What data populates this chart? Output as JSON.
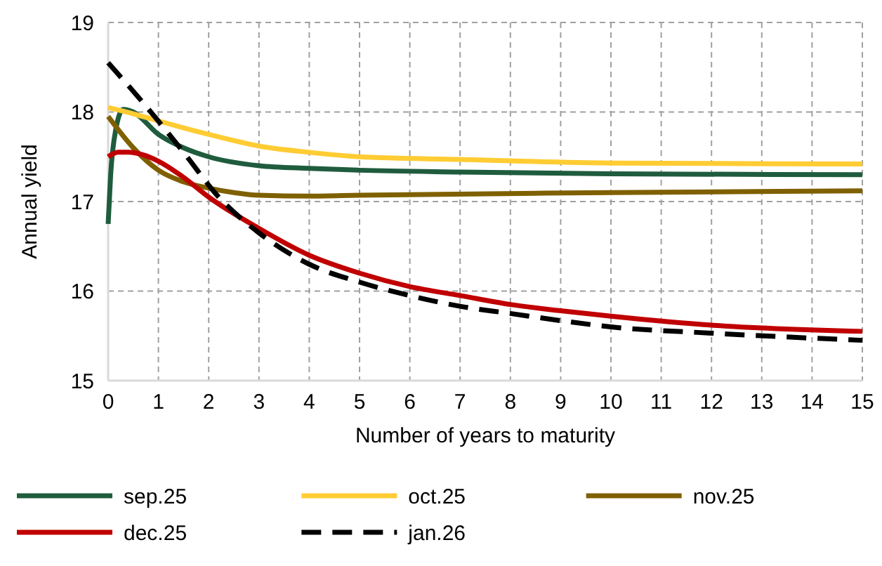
{
  "chart_data": {
    "type": "line",
    "xlabel": "Number of years to maturity",
    "ylabel": "Annual yield",
    "xlim": [
      0,
      15
    ],
    "xticks": [
      0,
      1,
      2,
      3,
      4,
      5,
      6,
      7,
      8,
      9,
      10,
      11,
      12,
      13,
      14,
      15
    ],
    "ylim": [
      15,
      19
    ],
    "yticks": [
      15,
      16,
      17,
      18,
      19
    ],
    "grid": true,
    "legend": "bottom",
    "marker": "none",
    "series": [
      {
        "name": "sep.25",
        "color": "#1f5c3e",
        "x": [
          0,
          0.05,
          0.15,
          0.3,
          0.5,
          1,
          1.5,
          2,
          3,
          4,
          5,
          7,
          10,
          15
        ],
        "values": [
          16.75,
          17.3,
          17.8,
          18.03,
          18.0,
          17.75,
          17.6,
          17.5,
          17.4,
          17.37,
          17.35,
          17.33,
          17.31,
          17.3
        ]
      },
      {
        "name": "oct.25",
        "color": "#ffcc33",
        "x": [
          0,
          0.5,
          1,
          2,
          3,
          4,
          5,
          7,
          10,
          15
        ],
        "values": [
          18.05,
          17.98,
          17.9,
          17.75,
          17.62,
          17.55,
          17.5,
          17.47,
          17.43,
          17.42
        ]
      },
      {
        "name": "nov.25",
        "color": "#7f6000",
        "x": [
          0,
          0.5,
          1,
          1.5,
          2,
          2.5,
          3,
          4,
          5,
          10,
          15
        ],
        "values": [
          17.95,
          17.6,
          17.35,
          17.22,
          17.15,
          17.1,
          17.07,
          17.06,
          17.07,
          17.1,
          17.12
        ]
      },
      {
        "name": "dec.25",
        "color": "#c00000",
        "x": [
          0,
          0.2,
          0.4,
          0.7,
          1,
          1.5,
          2,
          3,
          4,
          5,
          6,
          7,
          8,
          9,
          10,
          12,
          15
        ],
        "values": [
          17.5,
          17.55,
          17.55,
          17.52,
          17.45,
          17.27,
          17.05,
          16.7,
          16.4,
          16.2,
          16.05,
          15.95,
          15.85,
          15.78,
          15.72,
          15.62,
          15.55
        ]
      },
      {
        "name": "jan.26",
        "color": "#000000",
        "line_style": "dashed",
        "x": [
          0,
          0.7,
          1.5,
          2.2,
          3,
          4,
          5,
          6,
          7,
          8,
          9,
          10,
          12,
          15
        ],
        "values": [
          18.55,
          18.1,
          17.55,
          17.05,
          16.65,
          16.3,
          16.1,
          15.95,
          15.83,
          15.75,
          15.67,
          15.6,
          15.53,
          15.45
        ]
      }
    ]
  }
}
